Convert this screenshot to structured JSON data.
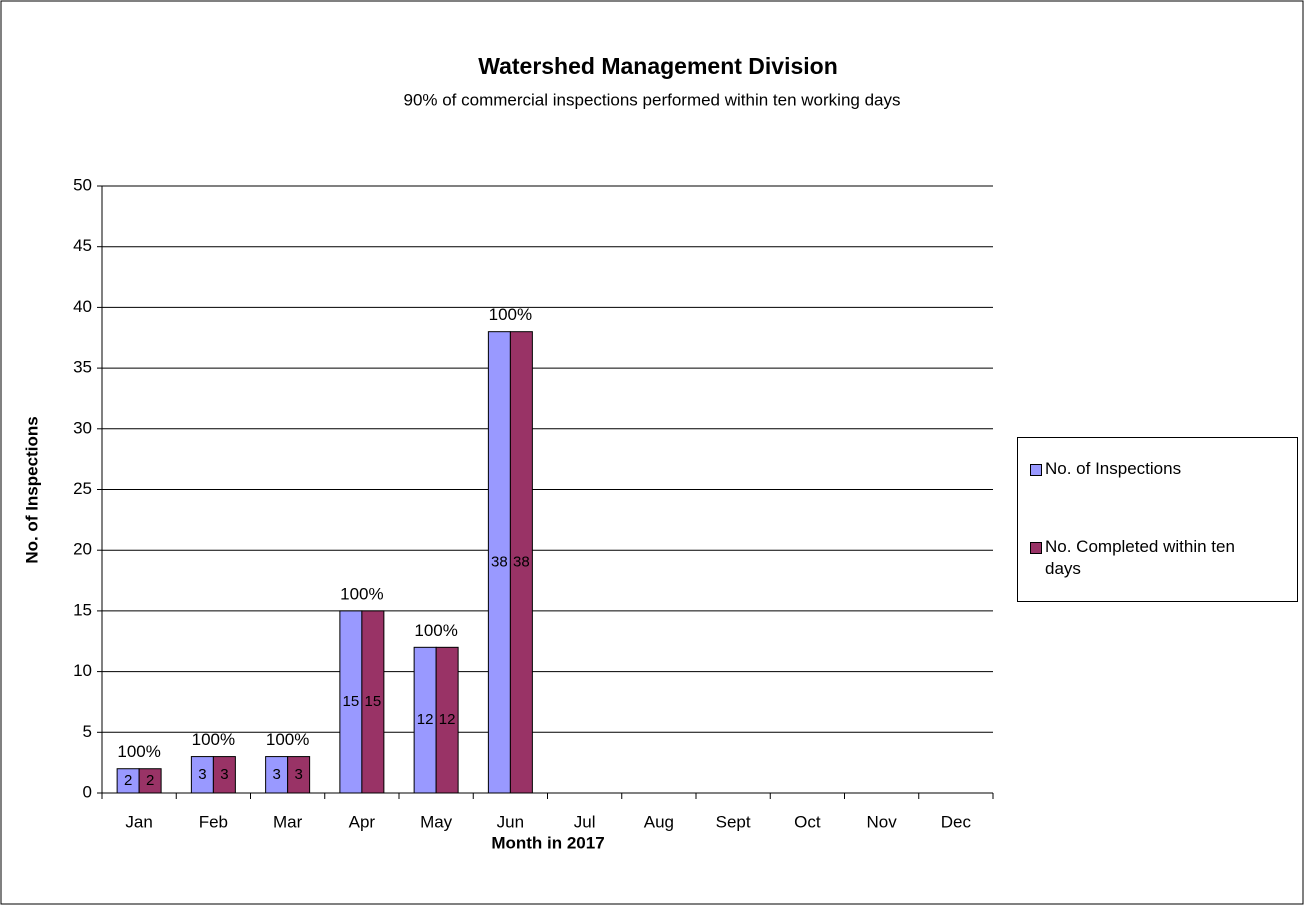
{
  "chart_data": {
    "type": "bar",
    "title": "Watershed Management  Division",
    "subtitle": "90% of commercial inspections performed  within ten working days",
    "x_label": "Month in 2017",
    "y_label": "No. of Inspections",
    "categories": [
      "Jan",
      "Feb",
      "Mar",
      "Apr",
      "May",
      "Jun",
      "Jul",
      "Aug",
      "Sept",
      "Oct",
      "Nov",
      "Dec"
    ],
    "series": [
      {
        "name": "No. of Inspections",
        "color": "#9999ff",
        "values": [
          2,
          3,
          3,
          15,
          12,
          38,
          null,
          null,
          null,
          null,
          null,
          null
        ]
      },
      {
        "name": "No. Completed within ten days",
        "color": "#993366",
        "values": [
          2,
          3,
          3,
          15,
          12,
          38,
          null,
          null,
          null,
          null,
          null,
          null
        ]
      }
    ],
    "completion_rate": {
      "values": [
        100,
        100,
        100,
        100,
        100,
        100,
        null,
        null,
        null,
        null,
        null,
        null
      ],
      "value_labels": [
        "100%",
        "100%",
        "100%",
        "100%",
        "100%",
        "100%",
        null,
        null,
        null,
        null,
        null,
        null
      ]
    },
    "ylim": [
      0,
      50
    ],
    "yticks": [
      0,
      5,
      10,
      15,
      20,
      25,
      30,
      35,
      40,
      45,
      50
    ],
    "grid": true,
    "legend": "right"
  }
}
